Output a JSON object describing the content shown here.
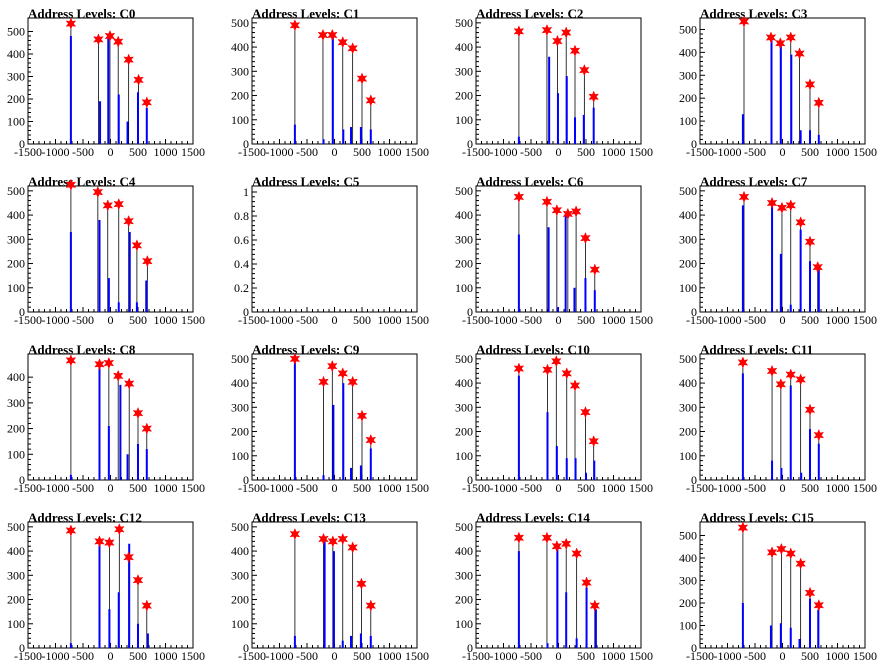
{
  "chart_data": [
    {
      "type": "bar",
      "title": "Address Levels: C0",
      "xlim": [
        -1500,
        1500
      ],
      "ylim": [
        0,
        560
      ],
      "yticks": [
        0,
        100,
        200,
        300,
        400,
        500
      ],
      "xticks": [
        -1500,
        -1000,
        -500,
        0,
        500,
        1000,
        1500
      ],
      "peaks": [
        {
          "x": -720,
          "y": 535
        },
        {
          "x": -220,
          "y": 465
        },
        {
          "x": -10,
          "y": 480
        },
        {
          "x": 140,
          "y": 455
        },
        {
          "x": 330,
          "y": 375
        },
        {
          "x": 510,
          "y": 285
        },
        {
          "x": 660,
          "y": 185
        }
      ],
      "bars": [
        {
          "x": -720,
          "y": 480
        },
        {
          "x": -190,
          "y": 190
        },
        {
          "x": -40,
          "y": 470
        },
        {
          "x": 150,
          "y": 220
        },
        {
          "x": 310,
          "y": 100
        },
        {
          "x": 500,
          "y": 230
        },
        {
          "x": 660,
          "y": 160
        }
      ]
    },
    {
      "type": "bar",
      "title": "Address Levels: C1",
      "xlim": [
        -1500,
        1500
      ],
      "ylim": [
        0,
        520
      ],
      "yticks": [
        0,
        100,
        200,
        300,
        400,
        500
      ],
      "xticks": [
        -1500,
        -1000,
        -500,
        0,
        500,
        1000,
        1500
      ],
      "peaks": [
        {
          "x": -720,
          "y": 490
        },
        {
          "x": -210,
          "y": 450
        },
        {
          "x": -40,
          "y": 450
        },
        {
          "x": 150,
          "y": 420
        },
        {
          "x": 330,
          "y": 395
        },
        {
          "x": 500,
          "y": 270
        },
        {
          "x": 660,
          "y": 180
        }
      ],
      "bars": [
        {
          "x": -720,
          "y": 80
        },
        {
          "x": -200,
          "y": 20
        },
        {
          "x": -30,
          "y": 440
        },
        {
          "x": 160,
          "y": 60
        },
        {
          "x": 300,
          "y": 70
        },
        {
          "x": 480,
          "y": 70
        },
        {
          "x": 660,
          "y": 60
        }
      ]
    },
    {
      "type": "bar",
      "title": "Address Levels: C2",
      "xlim": [
        -1500,
        1500
      ],
      "ylim": [
        0,
        520
      ],
      "yticks": [
        0,
        100,
        200,
        300,
        400,
        500
      ],
      "xticks": [
        -1500,
        -1000,
        -500,
        0,
        500,
        1000,
        1500
      ],
      "peaks": [
        {
          "x": -720,
          "y": 465
        },
        {
          "x": -210,
          "y": 470
        },
        {
          "x": -20,
          "y": 425
        },
        {
          "x": 140,
          "y": 460
        },
        {
          "x": 300,
          "y": 385
        },
        {
          "x": 470,
          "y": 305
        },
        {
          "x": 640,
          "y": 195
        }
      ],
      "bars": [
        {
          "x": -720,
          "y": 30
        },
        {
          "x": -170,
          "y": 360
        },
        {
          "x": -10,
          "y": 210
        },
        {
          "x": 150,
          "y": 280
        },
        {
          "x": 300,
          "y": 110
        },
        {
          "x": 460,
          "y": 120
        },
        {
          "x": 640,
          "y": 150
        }
      ]
    },
    {
      "type": "bar",
      "title": "Address Levels: C3",
      "xlim": [
        -1500,
        1500
      ],
      "ylim": [
        0,
        550
      ],
      "yticks": [
        0,
        100,
        200,
        300,
        400,
        500
      ],
      "xticks": [
        -1500,
        -1000,
        -500,
        0,
        500,
        1000,
        1500
      ],
      "peaks": [
        {
          "x": -700,
          "y": 535
        },
        {
          "x": -210,
          "y": 465
        },
        {
          "x": -40,
          "y": 440
        },
        {
          "x": 150,
          "y": 465
        },
        {
          "x": 310,
          "y": 395
        },
        {
          "x": 500,
          "y": 260
        },
        {
          "x": 660,
          "y": 180
        }
      ],
      "bars": [
        {
          "x": -720,
          "y": 130
        },
        {
          "x": -200,
          "y": 460
        },
        {
          "x": -30,
          "y": 440
        },
        {
          "x": 160,
          "y": 390
        },
        {
          "x": 330,
          "y": 60
        },
        {
          "x": 500,
          "y": 60
        },
        {
          "x": 660,
          "y": 40
        }
      ]
    },
    {
      "type": "bar",
      "title": "Address Levels: C4",
      "xlim": [
        -1500,
        1500
      ],
      "ylim": [
        0,
        520
      ],
      "yticks": [
        0,
        100,
        200,
        300,
        400,
        500
      ],
      "xticks": [
        -1500,
        -1000,
        -500,
        0,
        500,
        1000,
        1500
      ],
      "peaks": [
        {
          "x": -720,
          "y": 525
        },
        {
          "x": -230,
          "y": 495
        },
        {
          "x": -50,
          "y": 440
        },
        {
          "x": 150,
          "y": 445
        },
        {
          "x": 330,
          "y": 375
        },
        {
          "x": 480,
          "y": 275
        },
        {
          "x": 670,
          "y": 210
        }
      ],
      "bars": [
        {
          "x": -720,
          "y": 330
        },
        {
          "x": -200,
          "y": 380
        },
        {
          "x": -30,
          "y": 140
        },
        {
          "x": 150,
          "y": 40
        },
        {
          "x": 350,
          "y": 330
        },
        {
          "x": 480,
          "y": 40
        },
        {
          "x": 650,
          "y": 130
        }
      ]
    },
    {
      "type": "bar",
      "title": "Address Levels: C5",
      "xlim": [
        -1500,
        1500
      ],
      "ylim": [
        0,
        1.05
      ],
      "yticks": [
        0,
        0.2,
        0.4,
        0.6,
        0.8,
        1
      ],
      "xticks": [
        -1500,
        -1000,
        -500,
        0,
        500,
        1000,
        1500
      ],
      "peaks": [],
      "bars": []
    },
    {
      "type": "bar",
      "title": "Address Levels: C6",
      "xlim": [
        -1500,
        1500
      ],
      "ylim": [
        0,
        520
      ],
      "yticks": [
        0,
        100,
        200,
        300,
        400,
        500
      ],
      "xticks": [
        -1500,
        -1000,
        -500,
        0,
        500,
        1000,
        1500
      ],
      "peaks": [
        {
          "x": -720,
          "y": 475
        },
        {
          "x": -210,
          "y": 455
        },
        {
          "x": -30,
          "y": 420
        },
        {
          "x": 170,
          "y": 405
        },
        {
          "x": 320,
          "y": 415
        },
        {
          "x": 490,
          "y": 305
        },
        {
          "x": 660,
          "y": 175
        }
      ],
      "bars": [
        {
          "x": -720,
          "y": 320
        },
        {
          "x": -180,
          "y": 350
        },
        {
          "x": -10,
          "y": 20
        },
        {
          "x": 130,
          "y": 400
        },
        {
          "x": 290,
          "y": 100
        },
        {
          "x": 490,
          "y": 140
        },
        {
          "x": 660,
          "y": 90
        }
      ]
    },
    {
      "type": "bar",
      "title": "Address Levels: C7",
      "xlim": [
        -1500,
        1500
      ],
      "ylim": [
        0,
        520
      ],
      "yticks": [
        0,
        100,
        200,
        300,
        400,
        500
      ],
      "xticks": [
        -1500,
        -1000,
        -500,
        0,
        500,
        1000,
        1500
      ],
      "peaks": [
        {
          "x": -700,
          "y": 475
        },
        {
          "x": -190,
          "y": 450
        },
        {
          "x": -10,
          "y": 430
        },
        {
          "x": 150,
          "y": 440
        },
        {
          "x": 330,
          "y": 370
        },
        {
          "x": 500,
          "y": 290
        },
        {
          "x": 640,
          "y": 185
        }
      ],
      "bars": [
        {
          "x": -720,
          "y": 440
        },
        {
          "x": -190,
          "y": 460
        },
        {
          "x": -30,
          "y": 240
        },
        {
          "x": 150,
          "y": 30
        },
        {
          "x": 330,
          "y": 340
        },
        {
          "x": 500,
          "y": 210
        },
        {
          "x": 660,
          "y": 180
        }
      ]
    },
    {
      "type": "bar",
      "title": "Address Levels: C8",
      "xlim": [
        -1500,
        1500
      ],
      "ylim": [
        0,
        490
      ],
      "yticks": [
        0,
        100,
        200,
        300,
        400
      ],
      "xticks": [
        -1500,
        -1000,
        -500,
        0,
        500,
        1000,
        1500
      ],
      "peaks": [
        {
          "x": -720,
          "y": 465
        },
        {
          "x": -200,
          "y": 450
        },
        {
          "x": -30,
          "y": 455
        },
        {
          "x": 140,
          "y": 405
        },
        {
          "x": 340,
          "y": 375
        },
        {
          "x": 500,
          "y": 260
        },
        {
          "x": 660,
          "y": 200
        }
      ],
      "bars": [
        {
          "x": -720,
          "y": 20
        },
        {
          "x": -200,
          "y": 440
        },
        {
          "x": -30,
          "y": 210
        },
        {
          "x": 180,
          "y": 370
        },
        {
          "x": 310,
          "y": 100
        },
        {
          "x": 500,
          "y": 140
        },
        {
          "x": 660,
          "y": 120
        }
      ]
    },
    {
      "type": "bar",
      "title": "Address Levels: C9",
      "xlim": [
        -1500,
        1500
      ],
      "ylim": [
        0,
        520
      ],
      "yticks": [
        0,
        100,
        200,
        300,
        400,
        500
      ],
      "xticks": [
        -1500,
        -1000,
        -500,
        0,
        500,
        1000,
        1500
      ],
      "peaks": [
        {
          "x": -720,
          "y": 500
        },
        {
          "x": -200,
          "y": 405
        },
        {
          "x": -40,
          "y": 470
        },
        {
          "x": 150,
          "y": 440
        },
        {
          "x": 330,
          "y": 405
        },
        {
          "x": 500,
          "y": 265
        },
        {
          "x": 660,
          "y": 165
        }
      ],
      "bars": [
        {
          "x": -720,
          "y": 490
        },
        {
          "x": -200,
          "y": 20
        },
        {
          "x": -20,
          "y": 310
        },
        {
          "x": 160,
          "y": 400
        },
        {
          "x": 300,
          "y": 50
        },
        {
          "x": 480,
          "y": 60
        },
        {
          "x": 660,
          "y": 130
        }
      ]
    },
    {
      "type": "bar",
      "title": "Address Levels: C10",
      "xlim": [
        -1500,
        1500
      ],
      "ylim": [
        0,
        520
      ],
      "yticks": [
        0,
        100,
        200,
        300,
        400,
        500
      ],
      "xticks": [
        -1500,
        -1000,
        -500,
        0,
        500,
        1000,
        1500
      ],
      "peaks": [
        {
          "x": -720,
          "y": 460
        },
        {
          "x": -200,
          "y": 455
        },
        {
          "x": -40,
          "y": 490
        },
        {
          "x": 150,
          "y": 440
        },
        {
          "x": 300,
          "y": 390
        },
        {
          "x": 490,
          "y": 280
        },
        {
          "x": 640,
          "y": 160
        }
      ],
      "bars": [
        {
          "x": -720,
          "y": 430
        },
        {
          "x": -200,
          "y": 280
        },
        {
          "x": -30,
          "y": 140
        },
        {
          "x": 150,
          "y": 90
        },
        {
          "x": 310,
          "y": 90
        },
        {
          "x": 500,
          "y": 30
        },
        {
          "x": 650,
          "y": 80
        }
      ]
    },
    {
      "type": "bar",
      "title": "Address Levels: C11",
      "xlim": [
        -1500,
        1500
      ],
      "ylim": [
        0,
        520
      ],
      "yticks": [
        0,
        100,
        200,
        300,
        400,
        500
      ],
      "xticks": [
        -1500,
        -1000,
        -500,
        0,
        500,
        1000,
        1500
      ],
      "peaks": [
        {
          "x": -720,
          "y": 485
        },
        {
          "x": -190,
          "y": 450
        },
        {
          "x": -30,
          "y": 395
        },
        {
          "x": 150,
          "y": 435
        },
        {
          "x": 330,
          "y": 415
        },
        {
          "x": 500,
          "y": 290
        },
        {
          "x": 660,
          "y": 185
        }
      ],
      "bars": [
        {
          "x": -720,
          "y": 440
        },
        {
          "x": -190,
          "y": 80
        },
        {
          "x": -20,
          "y": 50
        },
        {
          "x": 150,
          "y": 390
        },
        {
          "x": 340,
          "y": 30
        },
        {
          "x": 500,
          "y": 210
        },
        {
          "x": 660,
          "y": 150
        }
      ]
    },
    {
      "type": "bar",
      "title": "Address Levels: C12",
      "xlim": [
        -1500,
        1500
      ],
      "ylim": [
        0,
        520
      ],
      "yticks": [
        0,
        100,
        200,
        300,
        400,
        500
      ],
      "xticks": [
        -1500,
        -1000,
        -500,
        0,
        500,
        1000,
        1500
      ],
      "peaks": [
        {
          "x": -720,
          "y": 485
        },
        {
          "x": -200,
          "y": 440
        },
        {
          "x": -20,
          "y": 435
        },
        {
          "x": 160,
          "y": 490
        },
        {
          "x": 330,
          "y": 375
        },
        {
          "x": 500,
          "y": 280
        },
        {
          "x": 660,
          "y": 175
        }
      ],
      "bars": [
        {
          "x": -720,
          "y": 20
        },
        {
          "x": -200,
          "y": 430
        },
        {
          "x": -20,
          "y": 160
        },
        {
          "x": 150,
          "y": 230
        },
        {
          "x": 340,
          "y": 430
        },
        {
          "x": 500,
          "y": 100
        },
        {
          "x": 680,
          "y": 60
        }
      ]
    },
    {
      "type": "bar",
      "title": "Address Levels: C13",
      "xlim": [
        -1500,
        1500
      ],
      "ylim": [
        0,
        520
      ],
      "yticks": [
        0,
        100,
        200,
        300,
        400,
        500
      ],
      "xticks": [
        -1500,
        -1000,
        -500,
        0,
        500,
        1000,
        1500
      ],
      "peaks": [
        {
          "x": -720,
          "y": 470
        },
        {
          "x": -200,
          "y": 450
        },
        {
          "x": -30,
          "y": 440
        },
        {
          "x": 150,
          "y": 450
        },
        {
          "x": 330,
          "y": 415
        },
        {
          "x": 490,
          "y": 265
        },
        {
          "x": 660,
          "y": 175
        }
      ],
      "bars": [
        {
          "x": -720,
          "y": 50
        },
        {
          "x": -180,
          "y": 440
        },
        {
          "x": -10,
          "y": 400
        },
        {
          "x": 150,
          "y": 30
        },
        {
          "x": 300,
          "y": 50
        },
        {
          "x": 480,
          "y": 60
        },
        {
          "x": 660,
          "y": 50
        }
      ]
    },
    {
      "type": "bar",
      "title": "Address Levels: C14",
      "xlim": [
        -1500,
        1500
      ],
      "ylim": [
        0,
        520
      ],
      "yticks": [
        0,
        100,
        200,
        300,
        400,
        500
      ],
      "xticks": [
        -1500,
        -1000,
        -500,
        0,
        500,
        1000,
        1500
      ],
      "peaks": [
        {
          "x": -720,
          "y": 455
        },
        {
          "x": -210,
          "y": 455
        },
        {
          "x": -30,
          "y": 420
        },
        {
          "x": 140,
          "y": 430
        },
        {
          "x": 330,
          "y": 390
        },
        {
          "x": 510,
          "y": 270
        },
        {
          "x": 660,
          "y": 175
        }
      ],
      "bars": [
        {
          "x": -720,
          "y": 400
        },
        {
          "x": -200,
          "y": 20
        },
        {
          "x": -20,
          "y": 410
        },
        {
          "x": 140,
          "y": 230
        },
        {
          "x": 330,
          "y": 40
        },
        {
          "x": 510,
          "y": 250
        },
        {
          "x": 680,
          "y": 160
        }
      ]
    },
    {
      "type": "bar",
      "title": "Address Levels: C15",
      "xlim": [
        -1500,
        1500
      ],
      "ylim": [
        0,
        560
      ],
      "yticks": [
        0,
        100,
        200,
        300,
        400,
        500
      ],
      "xticks": [
        -1500,
        -1000,
        -500,
        0,
        500,
        1000,
        1500
      ],
      "peaks": [
        {
          "x": -720,
          "y": 535
        },
        {
          "x": -190,
          "y": 425
        },
        {
          "x": -20,
          "y": 440
        },
        {
          "x": 150,
          "y": 420
        },
        {
          "x": 330,
          "y": 375
        },
        {
          "x": 500,
          "y": 245
        },
        {
          "x": 660,
          "y": 190
        }
      ],
      "bars": [
        {
          "x": -720,
          "y": 200
        },
        {
          "x": -210,
          "y": 100
        },
        {
          "x": -30,
          "y": 110
        },
        {
          "x": 150,
          "y": 90
        },
        {
          "x": 310,
          "y": 40
        },
        {
          "x": 500,
          "y": 220
        },
        {
          "x": 650,
          "y": 170
        }
      ]
    }
  ],
  "colors": {
    "bar": "#0000ff",
    "marker": "#ff0000",
    "axis": "#000000"
  }
}
